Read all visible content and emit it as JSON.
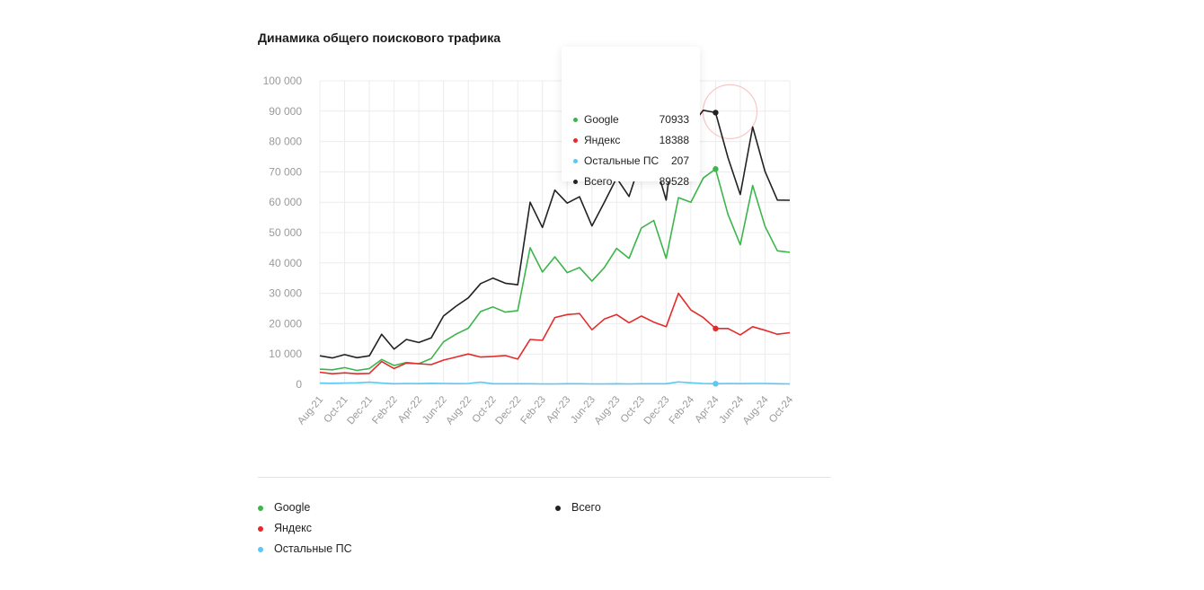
{
  "chart_data": {
    "type": "line",
    "title": "Динамика общего поискового трафика",
    "xlabel": "",
    "ylabel": "",
    "ylim": [
      0,
      100000
    ],
    "yticks": [
      0,
      10000,
      20000,
      30000,
      40000,
      50000,
      60000,
      70000,
      80000,
      90000,
      100000
    ],
    "ytick_labels": [
      "0",
      "10 000",
      "20 000",
      "30 000",
      "40 000",
      "50 000",
      "60 000",
      "70 000",
      "80 000",
      "90 000",
      "100 000"
    ],
    "x": [
      "Aug-21",
      "Sep-21",
      "Oct-21",
      "Nov-21",
      "Dec-21",
      "Jan-22",
      "Feb-22",
      "Mar-22",
      "Apr-22",
      "May-22",
      "Jun-22",
      "Jul-22",
      "Aug-22",
      "Sep-22",
      "Oct-22",
      "Nov-22",
      "Dec-22",
      "Jan-23",
      "Feb-23",
      "Mar-23",
      "Apr-23",
      "May-23",
      "Jun-23",
      "Jul-23",
      "Aug-23",
      "Sep-23",
      "Oct-23",
      "Nov-23",
      "Dec-23",
      "Jan-24",
      "Feb-24",
      "Mar-24",
      "Apr-24",
      "May-24",
      "Jun-24",
      "Jul-24",
      "Aug-24",
      "Sep-24",
      "Oct-24"
    ],
    "xtick_labels": [
      "Aug-21",
      "Oct-21",
      "Dec-21",
      "Feb-22",
      "Apr-22",
      "Jun-22",
      "Aug-22",
      "Oct-22",
      "Dec-22",
      "Feb-23",
      "Apr-23",
      "Jun-23",
      "Aug-23",
      "Oct-23",
      "Dec-23",
      "Feb-24",
      "Apr-24",
      "Jun-24",
      "Aug-24",
      "Oct-24"
    ],
    "grid": true,
    "legend_placement": "bottom",
    "series": [
      {
        "name": "Google",
        "color": "#3cb54a",
        "values": [
          5000,
          4800,
          5500,
          4600,
          5200,
          8200,
          6200,
          7200,
          6800,
          8500,
          14000,
          16500,
          18500,
          24000,
          25500,
          23800,
          24300,
          45000,
          37000,
          42000,
          36800,
          38500,
          34000,
          38500,
          44800,
          41500,
          51500,
          54000,
          41500,
          61500,
          60000,
          68000,
          70933,
          56000,
          46000,
          65500,
          52000,
          44000,
          43500
        ]
      },
      {
        "name": "Яндекс",
        "color": "#e52a2a",
        "values": [
          4000,
          3500,
          3800,
          3500,
          3600,
          7500,
          5200,
          7000,
          6800,
          6500,
          8000,
          9000,
          10000,
          9000,
          9200,
          9500,
          8300,
          14800,
          14500,
          22000,
          23000,
          23300,
          18000,
          21500,
          23000,
          20300,
          22500,
          20500,
          19000,
          30000,
          24500,
          22000,
          18388,
          18400,
          16300,
          19000,
          17800,
          16500,
          17000
        ]
      },
      {
        "name": "Остальные ПС",
        "color": "#5bc8f5",
        "values": [
          400,
          350,
          450,
          500,
          700,
          400,
          200,
          300,
          250,
          350,
          300,
          250,
          300,
          700,
          200,
          200,
          200,
          200,
          150,
          150,
          200,
          200,
          150,
          150,
          200,
          150,
          200,
          200,
          200,
          800,
          500,
          300,
          207,
          300,
          250,
          300,
          300,
          200,
          150
        ]
      },
      {
        "name": "Всего",
        "color": "#222222",
        "values": [
          9400,
          8700,
          9800,
          8800,
          9400,
          16500,
          11600,
          14800,
          13800,
          15300,
          22500,
          25700,
          28500,
          33200,
          35000,
          33300,
          32800,
          60000,
          51700,
          64000,
          59700,
          61800,
          52200,
          60000,
          68000,
          61900,
          74200,
          74700,
          60700,
          92300,
          85000,
          90300,
          89528,
          74700,
          62550,
          84800,
          70100,
          60700,
          60650
        ]
      }
    ],
    "tooltip": {
      "rows": [
        {
          "label": "Google",
          "value": "70933",
          "color": "#3cb54a"
        },
        {
          "label": "Яндекс",
          "value": "18388",
          "color": "#e52a2a"
        },
        {
          "label": "Остальные ПС",
          "value": "207",
          "color": "#5bc8f5"
        },
        {
          "label": "Всего",
          "value": "89528",
          "color": "#222222"
        }
      ]
    },
    "hover_x": "Apr-24",
    "legend": [
      {
        "label": "Google",
        "color": "#3cb54a"
      },
      {
        "label": "Яндекс",
        "color": "#e52a2a"
      },
      {
        "label": "Остальные ПС",
        "color": "#5bc8f5"
      },
      {
        "label": "Всего",
        "color": "#222222"
      }
    ]
  }
}
